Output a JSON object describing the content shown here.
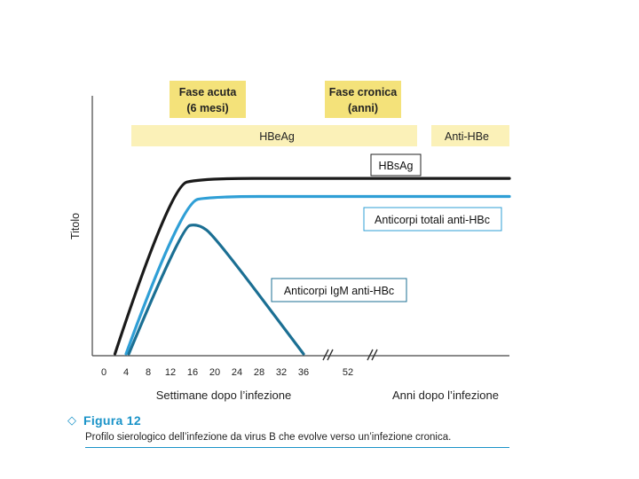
{
  "chart_data": {
    "type": "line",
    "ylabel": "Titolo",
    "xlabel_weeks": "Settimane dopo l’infezione",
    "xlabel_years": "Anni dopo l’infezione",
    "x_ticks": [
      "0",
      "4",
      "8",
      "12",
      "16",
      "20",
      "24",
      "28",
      "32",
      "36",
      "52"
    ],
    "phases": [
      {
        "label_line1": "Fase acuta",
        "label_line2": "(6 mesi)"
      },
      {
        "label_line1": "Fase cronica",
        "label_line2": "(anni)"
      }
    ],
    "bands": [
      {
        "label": "HBeAg",
        "x_start": 4,
        "x_end": "break"
      },
      {
        "label": "Anti-HBe",
        "x_start": "after break",
        "x_end": "end"
      }
    ],
    "series": [
      {
        "name": "HBsAg",
        "color": "#1a1a1a",
        "points": [
          [
            2,
            0
          ],
          [
            12,
            0.93
          ],
          [
            18,
            0.97
          ],
          [
            36,
            0.97
          ],
          [
            52,
            0.97
          ]
        ]
      },
      {
        "name": "Anticorpi totali anti-HBc",
        "color": "#2f9fd6",
        "points": [
          [
            4,
            0
          ],
          [
            14,
            0.84
          ],
          [
            20,
            0.87
          ],
          [
            36,
            0.87
          ],
          [
            52,
            0.87
          ]
        ]
      },
      {
        "name": "Anticorpi IgM anti-HBc",
        "color": "#1b6f93",
        "points": [
          [
            4.5,
            0
          ],
          [
            14,
            0.7
          ],
          [
            17,
            0.72
          ],
          [
            20,
            0.65
          ],
          [
            36,
            0
          ]
        ]
      }
    ],
    "y_ticks": "none",
    "grid": false
  },
  "figure": {
    "label": "Figura 12",
    "caption": "Profilo sierologico dell’infezione da virus B che evolve verso un’infezione cronica."
  },
  "colors": {
    "phase_box": "#f4e27a",
    "band": "#fbf1b8",
    "accent": "#1a93c8"
  }
}
